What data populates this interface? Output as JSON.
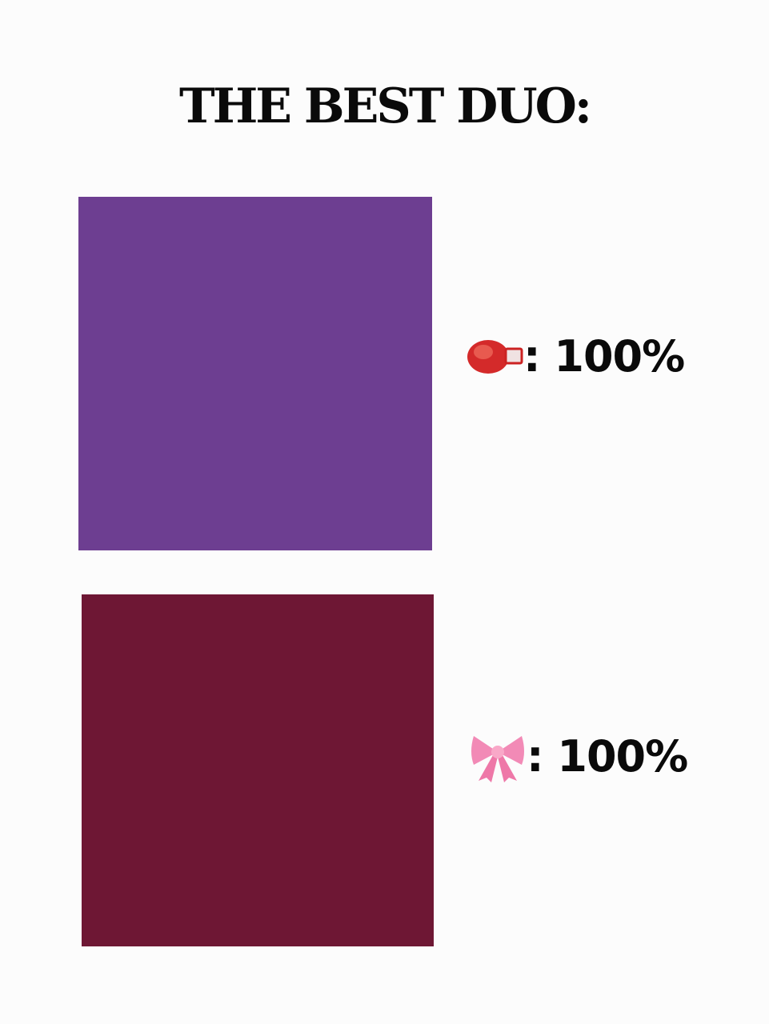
{
  "title": "THE BEST DUO:",
  "items": [
    {
      "color": "#6d3e91",
      "icon": "boxing-glove-icon",
      "value_label": ": 100%",
      "value": 100
    },
    {
      "color": "#6e1734",
      "icon": "pink-bow-icon",
      "value_label": ": 100%",
      "value": 100
    }
  ]
}
